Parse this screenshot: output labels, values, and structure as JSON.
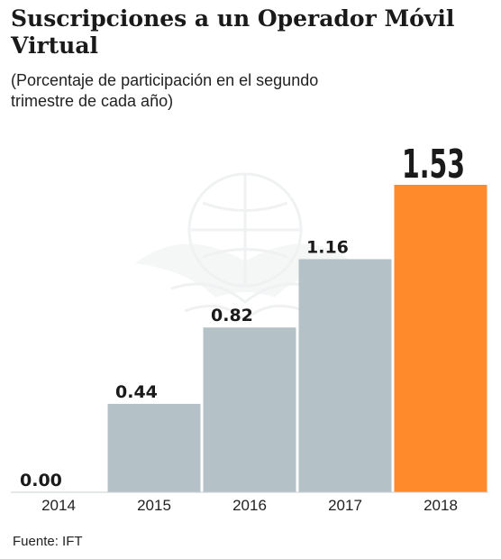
{
  "chart_data": {
    "type": "bar",
    "title": "Suscripciones a un Operador Móvil Virtual",
    "subtitle": "(Porcentaje de participación en el segundo trimestre de cada año)",
    "categories": [
      "2014",
      "2015",
      "2016",
      "2017",
      "2018"
    ],
    "values": [
      0.0,
      0.44,
      0.82,
      1.16,
      1.53
    ],
    "value_labels": [
      "0.00",
      "0.44",
      "0.82",
      "1.16",
      "1.53"
    ],
    "ylim": [
      0,
      1.53
    ],
    "xlabel": "",
    "ylabel": "",
    "grid": false,
    "colors": {
      "default": "#b4c1c6",
      "highlight": "#ff8a2b",
      "highlight_index": 4
    }
  },
  "source": "Fuente: IFT",
  "watermark": "eagle-emblem-icon"
}
